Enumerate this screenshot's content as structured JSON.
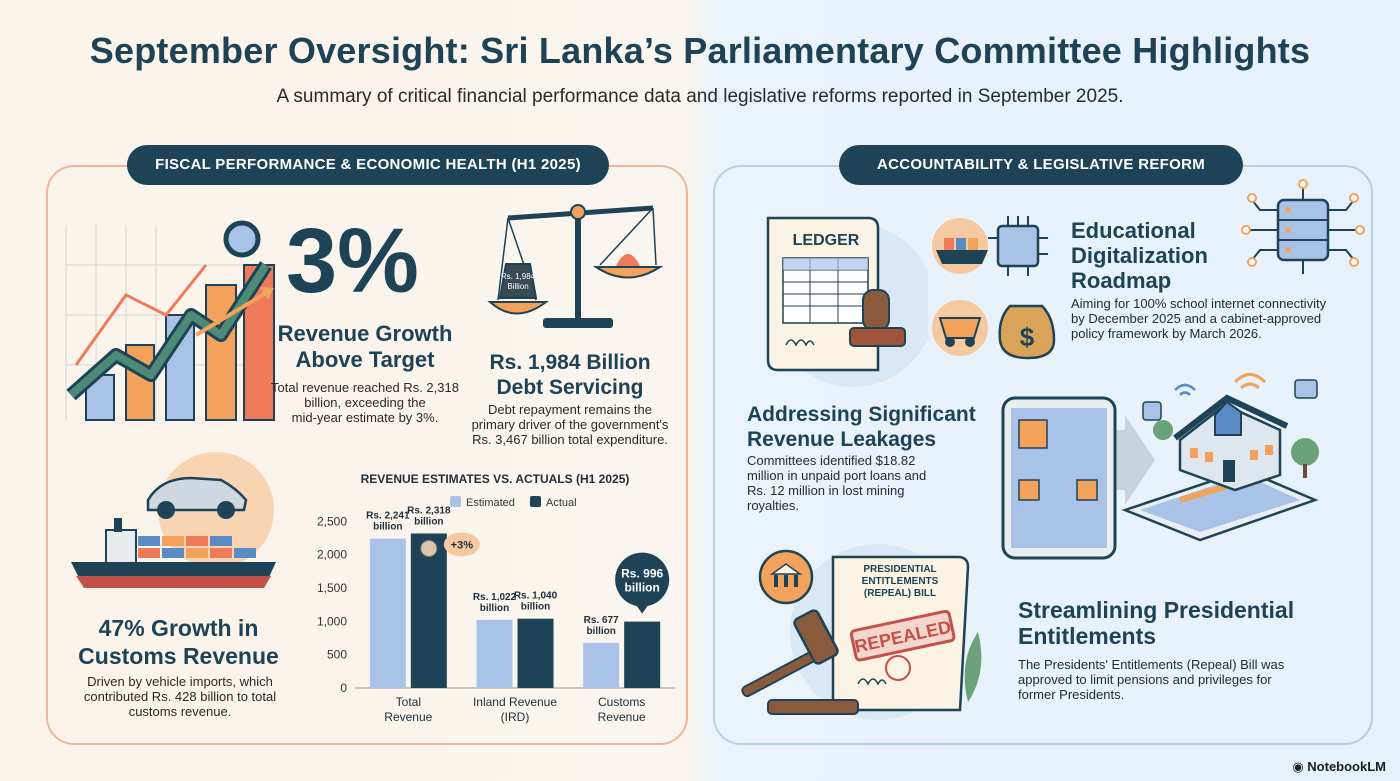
{
  "header": {
    "title": "September Oversight: Sri Lanka’s Parliamentary Committee Highlights",
    "subtitle": "A summary of critical financial performance data and legislative reforms reported in September 2025."
  },
  "left_section": {
    "pill": "FISCAL PERFORMANCE & ECONOMIC HEALTH (H1 2025)",
    "revenue_growth": {
      "big": "3%",
      "heading_line1": "Revenue Growth",
      "heading_line2": "Above Target",
      "text_line1": "Total revenue reached Rs. 2,318",
      "text_line2": "billion, exceeding the",
      "text_line3": "mid-year estimate by 3%."
    },
    "debt": {
      "weight_line1": "Rs. 1,984",
      "weight_line2": "Billion",
      "heading_line1": "Rs. 1,984 Billion",
      "heading_line2": "Debt Servicing",
      "text_line1": "Debt repayment remains the",
      "text_line2": "primary driver of the government's",
      "text_line3": "Rs. 3,467 billion total expenditure."
    },
    "customs": {
      "heading_line1": "47% Growth in",
      "heading_line2": "Customs Revenue",
      "text_line1": "Driven by vehicle imports, which",
      "text_line2": "contributed Rs. 428 billion to total",
      "text_line3": "customs revenue."
    }
  },
  "chart_data": {
    "type": "bar",
    "title": "REVENUE ESTIMATES VS. ACTUALS (H1 2025)",
    "categories": [
      "Total Revenue",
      "Inland Revenue (IRD)",
      "Customs Revenue"
    ],
    "category_lines": [
      [
        "Total",
        "Revenue"
      ],
      [
        "Inland Revenue",
        "(IRD)"
      ],
      [
        "Customs",
        "Revenue"
      ]
    ],
    "series": [
      {
        "name": "Estimated",
        "values": [
          2241,
          1022,
          677
        ],
        "color": "#a9c3e8",
        "labels": [
          [
            "Rs. 2,241",
            "billion"
          ],
          [
            "Rs. 1,022",
            "billion"
          ],
          [
            "Rs. 677",
            "billion"
          ]
        ]
      },
      {
        "name": "Actual",
        "values": [
          2318,
          1040,
          996
        ],
        "color": "#1e4356",
        "labels": [
          [
            "Rs. 2,318",
            "billion"
          ],
          [
            "Rs. 1,040",
            "billion"
          ],
          [
            "Rs. 996",
            "billion"
          ]
        ]
      }
    ],
    "yticks": [
      0,
      500,
      1000,
      1500,
      2000,
      2500
    ],
    "ytick_labels": [
      "0",
      "500",
      "1,000",
      "1,500",
      "2,000",
      "2,500"
    ],
    "ylim": [
      0,
      2700
    ],
    "annotation": "+3%",
    "legend_position": "top"
  },
  "right_section": {
    "pill": "ACCOUNTABILITY & LEGISLATIVE REFORM",
    "ledger_label": "LEDGER",
    "digital": {
      "heading_line1": "Educational",
      "heading_line2": "Digitalization",
      "heading_line3": "Roadmap",
      "text_line1": "Aiming for 100% school internet connectivity",
      "text_line2": "by December 2025 and a cabinet-approved",
      "text_line3": "policy framework by March 2026."
    },
    "leakage": {
      "heading_line1": "Addressing Significant",
      "heading_line2": "Revenue Leakages",
      "text_line1": "Committees identified $18.82",
      "text_line2": "million in unpaid port loans and",
      "text_line3": "Rs. 12 million in lost mining",
      "text_line4": "royalties."
    },
    "bill": {
      "doc_line1": "PRESIDENTIAL",
      "doc_line2": "ENTITLEMENTS",
      "doc_line3": "(REPEAL) BILL",
      "stamp": "REPEALED",
      "heading_line1": "Streamlining Presidential",
      "heading_line2": "Entitlements",
      "text_line1": "The Presidents' Entitlements (Repeal) Bill was",
      "text_line2": "approved to limit pensions and privileges for",
      "text_line3": "former Presidents."
    }
  },
  "brand": "NotebookLM",
  "colors": {
    "navy": "#1e4356",
    "accent_orange": "#f2a25a",
    "light_blue": "#a9c3e8"
  }
}
